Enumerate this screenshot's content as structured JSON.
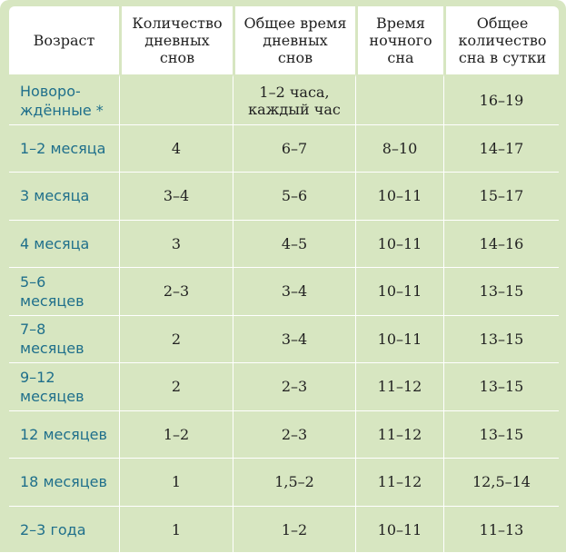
{
  "headers": [
    "Возраст",
    "Количество\nдневных\nснов",
    "Общее время\nдневных\nснов",
    "Время\nночного\nсна",
    "Общее\nколичество\nсна в сутки"
  ],
  "rows": [
    {
      "age": "Новоро-\nждённые *",
      "day_naps": "",
      "day_total": "1–2 часа,\nкаждый час",
      "night": "",
      "total": "16–19"
    },
    {
      "age": "1–2 месяца",
      "day_naps": "4",
      "day_total": "6–7",
      "night": "8–10",
      "total": "14–17"
    },
    {
      "age": "3 месяца",
      "day_naps": "3–4",
      "day_total": "5–6",
      "night": "10–11",
      "total": "15–17"
    },
    {
      "age": "4 месяца",
      "day_naps": "3",
      "day_total": "4–5",
      "night": "10–11",
      "total": "14–16"
    },
    {
      "age": "5–6\nмесяцев",
      "day_naps": "2–3",
      "day_total": "3–4",
      "night": "10–11",
      "total": "13–15"
    },
    {
      "age": "7–8\nмесяцев",
      "day_naps": "2",
      "day_total": "3–4",
      "night": "10–11",
      "total": "13–15"
    },
    {
      "age": "9–12\nмесяцев",
      "day_naps": "2",
      "day_total": "2–3",
      "night": "11–12",
      "total": "13–15"
    },
    {
      "age": "12 месяцев",
      "day_naps": "1–2",
      "day_total": "2–3",
      "night": "11–12",
      "total": "13–15"
    },
    {
      "age": "18 месяцев",
      "day_naps": "1",
      "day_total": "1,5–2",
      "night": "11–12",
      "total": "12,5–14"
    },
    {
      "age": "2–3 года",
      "day_naps": "1",
      "day_total": "1–2",
      "night": "10–11",
      "total": "11–13"
    }
  ],
  "colors": {
    "panel": "#d7e6c1",
    "header_bg": "#ffffff",
    "age_text": "#1f6f8b",
    "body_text": "#222222"
  }
}
